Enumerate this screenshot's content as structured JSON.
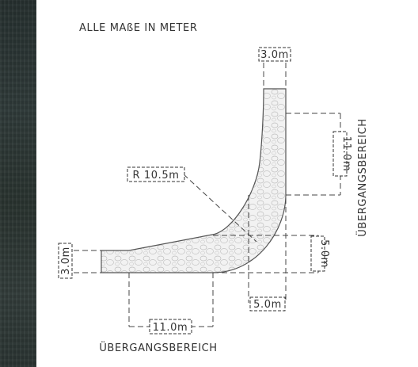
{
  "note": "ALLE MAßE IN METER",
  "dimensions": {
    "top_width": "3.0m",
    "right_upper": "11.0m",
    "radius": "R 10.5m",
    "left_height": "3.0m",
    "right_lower": "5.0m",
    "bottom_small": "5.0m",
    "bottom_long": "11.0m"
  },
  "labels": {
    "transition_right": "ÜBERGANGSBEREICH",
    "transition_bottom": "ÜBERGANGSBEREICH"
  }
}
